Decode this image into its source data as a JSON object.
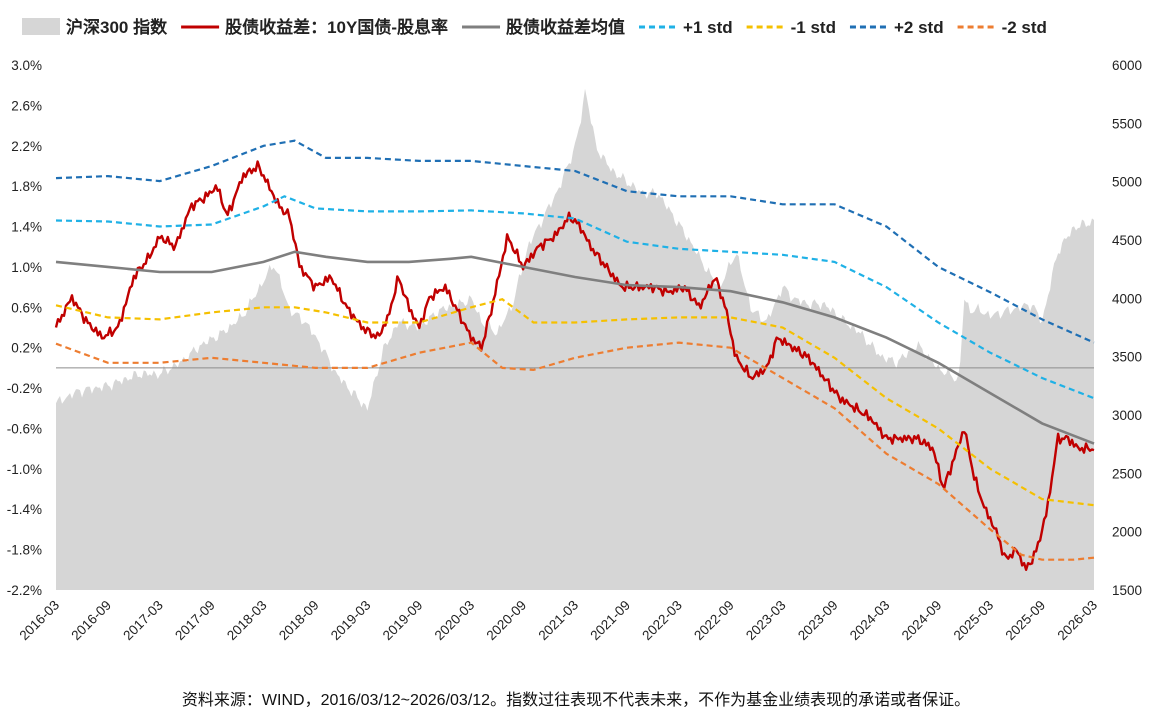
{
  "chart_data": {
    "type": "line",
    "title": "",
    "legend_position": "top",
    "x_tick_labels": [
      "2016-03",
      "2016-09",
      "2017-03",
      "2017-09",
      "2018-03",
      "2018-09",
      "2019-03",
      "2019-09",
      "2020-03",
      "2020-09",
      "2021-03",
      "2021-09",
      "2022-03",
      "2022-09",
      "2023-03",
      "2023-09",
      "2024-03",
      "2024-09",
      "2025-03",
      "2025-09",
      "2026-03"
    ],
    "x_range": [
      2016.0,
      2026.0
    ],
    "left_axis": {
      "range": [
        -2.2,
        3.0
      ],
      "ticks": [
        "3.0%",
        "2.6%",
        "2.2%",
        "1.8%",
        "1.4%",
        "1.0%",
        "0.6%",
        "0.2%",
        "-0.2%",
        "-0.6%",
        "-1.0%",
        "-1.4%",
        "-1.8%",
        "-2.2%"
      ],
      "tick_values": [
        3.0,
        2.6,
        2.2,
        1.8,
        1.4,
        1.0,
        0.6,
        0.2,
        -0.2,
        -0.6,
        -1.0,
        -1.4,
        -1.8,
        -2.2
      ]
    },
    "right_axis": {
      "range": [
        1500,
        6000
      ],
      "ticks": [
        "6000",
        "5500",
        "5000",
        "4500",
        "4000",
        "3500",
        "3000",
        "2500",
        "2000",
        "1500"
      ],
      "tick_values": [
        6000,
        5500,
        5000,
        4500,
        4000,
        3500,
        3000,
        2500,
        2000,
        1500
      ]
    },
    "series": [
      {
        "name": "沪深300 指数",
        "type": "area",
        "axis": "right",
        "color": "#d6d6d6",
        "x": [
          2016.0,
          2016.2,
          2016.5,
          2016.8,
          2017.0,
          2017.2,
          2017.4,
          2017.6,
          2017.8,
          2018.0,
          2018.1,
          2018.25,
          2018.4,
          2018.55,
          2018.7,
          2018.85,
          2019.0,
          2019.15,
          2019.3,
          2019.5,
          2019.7,
          2019.9,
          2020.0,
          2020.1,
          2020.25,
          2020.4,
          2020.55,
          2020.7,
          2020.85,
          2021.0,
          2021.05,
          2021.1,
          2021.2,
          2021.35,
          2021.5,
          2021.65,
          2021.8,
          2021.95,
          2022.1,
          2022.3,
          2022.4,
          2022.55,
          2022.7,
          2022.85,
          2023.0,
          2023.1,
          2023.25,
          2023.4,
          2023.6,
          2023.75,
          2023.95,
          2024.1,
          2024.3,
          2024.5,
          2024.6,
          2024.7,
          2024.75,
          2024.8,
          2024.9,
          2025.0,
          2025.2,
          2025.4,
          2025.5,
          2025.65,
          2025.8,
          2025.95,
          2026.0
        ],
        "values": [
          3100,
          3200,
          3250,
          3350,
          3350,
          3450,
          3600,
          3700,
          3850,
          4150,
          4300,
          3900,
          3800,
          3600,
          3350,
          3200,
          3050,
          3550,
          3800,
          3750,
          3900,
          3950,
          4000,
          3800,
          3700,
          3950,
          4450,
          4700,
          4950,
          5300,
          5500,
          5800,
          5300,
          5100,
          5000,
          4900,
          4900,
          4700,
          4500,
          4200,
          4100,
          4400,
          3900,
          3800,
          4100,
          4000,
          3950,
          3950,
          3800,
          3700,
          3500,
          3450,
          3600,
          3400,
          3350,
          3300,
          4000,
          3900,
          3900,
          3850,
          3900,
          3950,
          3800,
          4400,
          4600,
          4650,
          4650
        ]
      },
      {
        "name": "股债收益差：10Y国债-股息率",
        "type": "line",
        "axis": "left",
        "color": "#c00000",
        "x": [
          2016.0,
          2016.15,
          2016.3,
          2016.45,
          2016.6,
          2016.75,
          2016.9,
          2017.0,
          2017.15,
          2017.3,
          2017.45,
          2017.55,
          2017.65,
          2017.8,
          2017.95,
          2018.05,
          2018.15,
          2018.25,
          2018.35,
          2018.5,
          2018.65,
          2018.8,
          2018.95,
          2019.1,
          2019.2,
          2019.3,
          2019.4,
          2019.5,
          2019.6,
          2019.75,
          2019.9,
          2020.0,
          2020.1,
          2020.2,
          2020.35,
          2020.5,
          2020.65,
          2020.8,
          2020.95,
          2021.05,
          2021.15,
          2021.3,
          2021.45,
          2021.6,
          2021.75,
          2021.9,
          2022.05,
          2022.2,
          2022.35,
          2022.45,
          2022.55,
          2022.7,
          2022.85,
          2022.95,
          2023.1,
          2023.25,
          2023.4,
          2023.55,
          2023.7,
          2023.85,
          2024.0,
          2024.15,
          2024.3,
          2024.45,
          2024.55,
          2024.65,
          2024.75,
          2024.85,
          2024.95,
          2025.05,
          2025.15,
          2025.25,
          2025.35,
          2025.45,
          2025.55,
          2025.65,
          2025.75,
          2025.85,
          2025.95,
          2026.0
        ],
        "values": [
          0.4,
          0.7,
          0.45,
          0.3,
          0.4,
          0.9,
          1.1,
          1.3,
          1.2,
          1.6,
          1.7,
          1.8,
          1.5,
          1.9,
          2.0,
          1.8,
          1.6,
          1.5,
          1.0,
          0.8,
          0.9,
          0.6,
          0.4,
          0.3,
          0.5,
          0.9,
          0.6,
          0.4,
          0.7,
          0.8,
          0.5,
          0.3,
          0.2,
          0.6,
          1.3,
          1.0,
          1.2,
          1.3,
          1.5,
          1.4,
          1.2,
          1.0,
          0.8,
          0.8,
          0.8,
          0.75,
          0.8,
          0.6,
          0.9,
          0.6,
          0.1,
          -0.1,
          0.0,
          0.3,
          0.2,
          0.1,
          -0.1,
          -0.3,
          -0.4,
          -0.5,
          -0.7,
          -0.7,
          -0.7,
          -0.8,
          -1.2,
          -0.9,
          -0.6,
          -1.1,
          -1.4,
          -1.6,
          -1.9,
          -1.8,
          -2.0,
          -1.8,
          -1.4,
          -0.7,
          -0.7,
          -0.8,
          -0.8,
          -0.8
        ]
      },
      {
        "name": "股债收益差均值",
        "type": "line",
        "axis": "left",
        "color": "#7f7f7f",
        "x": [
          2016.0,
          2016.5,
          2017.0,
          2017.5,
          2018.0,
          2018.3,
          2018.6,
          2019.0,
          2019.4,
          2019.8,
          2020.0,
          2020.5,
          2021.0,
          2021.5,
          2022.0,
          2022.5,
          2023.0,
          2023.5,
          2024.0,
          2024.5,
          2025.0,
          2025.5,
          2026.0
        ],
        "values": [
          1.05,
          1.0,
          0.95,
          0.95,
          1.05,
          1.15,
          1.1,
          1.05,
          1.05,
          1.08,
          1.1,
          1.0,
          0.9,
          0.82,
          0.8,
          0.76,
          0.65,
          0.5,
          0.3,
          0.05,
          -0.25,
          -0.55,
          -0.75
        ]
      },
      {
        "name": "+1 std",
        "type": "dashed",
        "axis": "left",
        "color": "#1fb1e6",
        "x": [
          2016.0,
          2016.5,
          2017.0,
          2017.5,
          2018.0,
          2018.2,
          2018.5,
          2019.0,
          2019.5,
          2020.0,
          2020.5,
          2021.0,
          2021.5,
          2022.0,
          2022.5,
          2023.0,
          2023.5,
          2024.0,
          2024.5,
          2025.0,
          2025.5,
          2026.0
        ],
        "values": [
          1.46,
          1.45,
          1.4,
          1.42,
          1.6,
          1.7,
          1.58,
          1.55,
          1.55,
          1.56,
          1.53,
          1.48,
          1.25,
          1.18,
          1.15,
          1.12,
          1.05,
          0.8,
          0.45,
          0.15,
          -0.1,
          -0.3
        ]
      },
      {
        "name": "-1 std",
        "type": "dashed",
        "axis": "left",
        "color": "#f5c000",
        "x": [
          2016.0,
          2016.5,
          2017.0,
          2017.5,
          2018.0,
          2018.3,
          2018.6,
          2019.0,
          2019.5,
          2020.0,
          2020.3,
          2020.6,
          2021.0,
          2021.5,
          2022.0,
          2022.5,
          2023.0,
          2023.5,
          2024.0,
          2024.5,
          2025.0,
          2025.5,
          2026.0
        ],
        "values": [
          0.62,
          0.5,
          0.48,
          0.55,
          0.6,
          0.6,
          0.55,
          0.45,
          0.45,
          0.6,
          0.68,
          0.45,
          0.45,
          0.48,
          0.5,
          0.5,
          0.4,
          0.1,
          -0.3,
          -0.6,
          -1.0,
          -1.3,
          -1.36
        ]
      },
      {
        "name": "+2 std",
        "type": "dashed",
        "axis": "left",
        "color": "#1f6fb4",
        "x": [
          2016.0,
          2016.5,
          2017.0,
          2017.5,
          2018.0,
          2018.3,
          2018.6,
          2019.0,
          2019.5,
          2020.0,
          2020.5,
          2021.0,
          2021.5,
          2022.0,
          2022.5,
          2023.0,
          2023.5,
          2024.0,
          2024.5,
          2025.0,
          2025.5,
          2026.0
        ],
        "values": [
          1.88,
          1.9,
          1.85,
          2.0,
          2.2,
          2.25,
          2.08,
          2.08,
          2.05,
          2.05,
          2.0,
          1.95,
          1.75,
          1.7,
          1.7,
          1.62,
          1.62,
          1.4,
          1.0,
          0.75,
          0.48,
          0.25
        ]
      },
      {
        "name": "-2 std",
        "type": "dashed",
        "axis": "left",
        "color": "#ed7d31",
        "x": [
          2016.0,
          2016.5,
          2017.0,
          2017.5,
          2018.0,
          2018.5,
          2019.0,
          2019.5,
          2020.0,
          2020.3,
          2020.6,
          2021.0,
          2021.5,
          2022.0,
          2022.5,
          2023.0,
          2023.5,
          2024.0,
          2024.5,
          2025.0,
          2025.3,
          2025.5,
          2025.8,
          2026.0
        ],
        "values": [
          0.24,
          0.05,
          0.05,
          0.1,
          0.05,
          0.0,
          0.0,
          0.15,
          0.25,
          0.0,
          -0.02,
          0.1,
          0.2,
          0.25,
          0.2,
          -0.1,
          -0.4,
          -0.85,
          -1.15,
          -1.6,
          -1.85,
          -1.9,
          -1.9,
          -1.88
        ]
      }
    ]
  },
  "source_note": "资料来源：WIND，2016/03/12~2026/03/12。指数过往表现不代表未来，不作为基金业绩表现的承诺或者保证。"
}
